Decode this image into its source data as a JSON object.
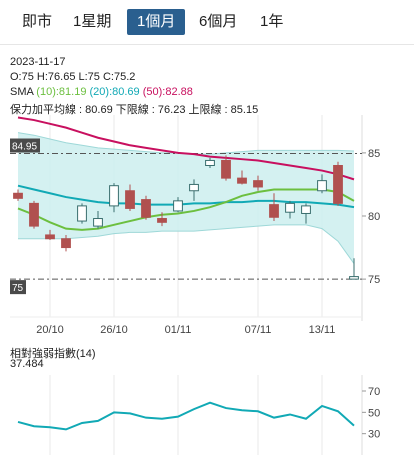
{
  "tabs": [
    {
      "label": "即市",
      "active": false
    },
    {
      "label": "1星期",
      "active": false
    },
    {
      "label": "1個月",
      "active": true
    },
    {
      "label": "6個月",
      "active": false
    },
    {
      "label": "1年",
      "active": false
    }
  ],
  "info": {
    "date": "2023-11-17",
    "ohlc": "O:75   H:76.65   L:75   C:75.2",
    "sma_label": "SMA",
    "sma10": "(10):81.19",
    "sma20": "(20):80.69",
    "sma50": "(50):82.88",
    "bollinger": "保力加平均線 : 80.69 下限線 : 76.23 上限線 : 85.15"
  },
  "colors": {
    "up": "#ffffff",
    "down": "#b0504f",
    "sma10": "#6cbf3f",
    "sma20": "#11a9b5",
    "sma50": "#c8105f",
    "band_fill": "#cdeeee",
    "rsi": "#11a9b5",
    "tab_active": "#2a5f8f"
  },
  "chart_data": [
    {
      "type": "candlestick",
      "ylim": [
        72,
        88
      ],
      "yticks": [
        75,
        80,
        85
      ],
      "ytick_labels": [
        "75",
        "80",
        "85"
      ],
      "xtick_labels": [
        "20/10",
        "26/10",
        "01/11",
        "07/11",
        "13/11"
      ],
      "xtick_index": [
        2,
        6,
        10,
        15,
        19
      ],
      "hlines": [
        {
          "value": 84.95,
          "label": "84.95"
        },
        {
          "value": 75,
          "label": "75"
        }
      ],
      "candles": [
        {
          "o": 81.8,
          "h": 82.1,
          "l": 81.2,
          "c": 81.4
        },
        {
          "o": 81.0,
          "h": 81.2,
          "l": 79.0,
          "c": 79.2
        },
        {
          "o": 78.5,
          "h": 78.9,
          "l": 78.1,
          "c": 78.2
        },
        {
          "o": 78.2,
          "h": 78.5,
          "l": 77.2,
          "c": 77.5
        },
        {
          "o": 79.6,
          "h": 81.0,
          "l": 79.4,
          "c": 80.8
        },
        {
          "o": 79.2,
          "h": 80.4,
          "l": 79.0,
          "c": 79.8
        },
        {
          "o": 80.8,
          "h": 82.6,
          "l": 80.3,
          "c": 82.4
        },
        {
          "o": 82.0,
          "h": 82.5,
          "l": 80.4,
          "c": 80.6
        },
        {
          "o": 81.3,
          "h": 81.6,
          "l": 79.7,
          "c": 79.9
        },
        {
          "o": 79.8,
          "h": 80.3,
          "l": 79.2,
          "c": 79.5
        },
        {
          "o": 80.4,
          "h": 81.5,
          "l": 80.3,
          "c": 81.2
        },
        {
          "o": 82.0,
          "h": 82.9,
          "l": 81.2,
          "c": 82.5
        },
        {
          "o": 84.0,
          "h": 84.6,
          "l": 83.8,
          "c": 84.4
        },
        {
          "o": 84.4,
          "h": 84.8,
          "l": 82.8,
          "c": 83.0
        },
        {
          "o": 83.0,
          "h": 83.6,
          "l": 82.5,
          "c": 82.6
        },
        {
          "o": 82.8,
          "h": 83.2,
          "l": 82.0,
          "c": 82.3
        },
        {
          "o": 80.9,
          "h": 81.8,
          "l": 79.6,
          "c": 79.9
        },
        {
          "o": 80.3,
          "h": 81.2,
          "l": 79.8,
          "c": 81.0
        },
        {
          "o": 80.2,
          "h": 81.0,
          "l": 79.4,
          "c": 80.8
        },
        {
          "o": 82.0,
          "h": 83.3,
          "l": 81.8,
          "c": 82.8
        },
        {
          "o": 84.0,
          "h": 84.3,
          "l": 80.8,
          "c": 81.0
        },
        {
          "o": 75.0,
          "h": 76.65,
          "l": 75.0,
          "c": 75.2
        }
      ],
      "sma10": [
        80.6,
        80.1,
        79.5,
        79.0,
        78.9,
        79.0,
        79.3,
        79.6,
        79.9,
        80.1,
        80.2,
        80.4,
        80.7,
        81.1,
        81.6,
        81.9,
        82.1,
        82.1,
        82.1,
        82.1,
        81.9,
        81.2
      ],
      "sma20": [
        82.4,
        82.1,
        81.8,
        81.5,
        81.3,
        81.1,
        81.0,
        81.0,
        80.9,
        80.9,
        80.9,
        81.0,
        81.0,
        81.1,
        81.1,
        81.2,
        81.2,
        81.1,
        81.1,
        81.0,
        80.9,
        80.7
      ],
      "sma50": [
        87.8,
        87.6,
        87.3,
        87.0,
        86.6,
        86.2,
        85.9,
        85.6,
        85.4,
        85.2,
        85.0,
        84.9,
        84.7,
        84.6,
        84.5,
        84.4,
        84.2,
        84.0,
        83.8,
        83.6,
        83.3,
        82.9
      ],
      "band_upper": [
        86.6,
        86.4,
        86.1,
        85.8,
        85.6,
        85.4,
        85.3,
        85.2,
        85.1,
        85.0,
        85.0,
        84.9,
        84.9,
        85.0,
        85.1,
        85.2,
        85.2,
        85.2,
        85.2,
        85.2,
        85.2,
        85.15
      ],
      "band_lower": [
        78.2,
        78.2,
        78.2,
        78.2,
        78.3,
        78.4,
        78.6,
        78.7,
        78.7,
        78.8,
        78.8,
        78.8,
        78.9,
        79.0,
        79.1,
        79.2,
        79.3,
        79.3,
        79.3,
        79.0,
        78.0,
        76.23
      ]
    },
    {
      "type": "line",
      "title": "相對強弱指數",
      "period": "(14)",
      "current": "37.484",
      "ylim": [
        10,
        85
      ],
      "yticks": [
        30,
        50,
        70
      ],
      "ytick_labels": [
        "30",
        "50",
        "70"
      ],
      "values": [
        41,
        37,
        36,
        34,
        40,
        42,
        50,
        49,
        45,
        44,
        46,
        53,
        59,
        54,
        52,
        51,
        45,
        48,
        44,
        56,
        51,
        37.5
      ]
    }
  ]
}
